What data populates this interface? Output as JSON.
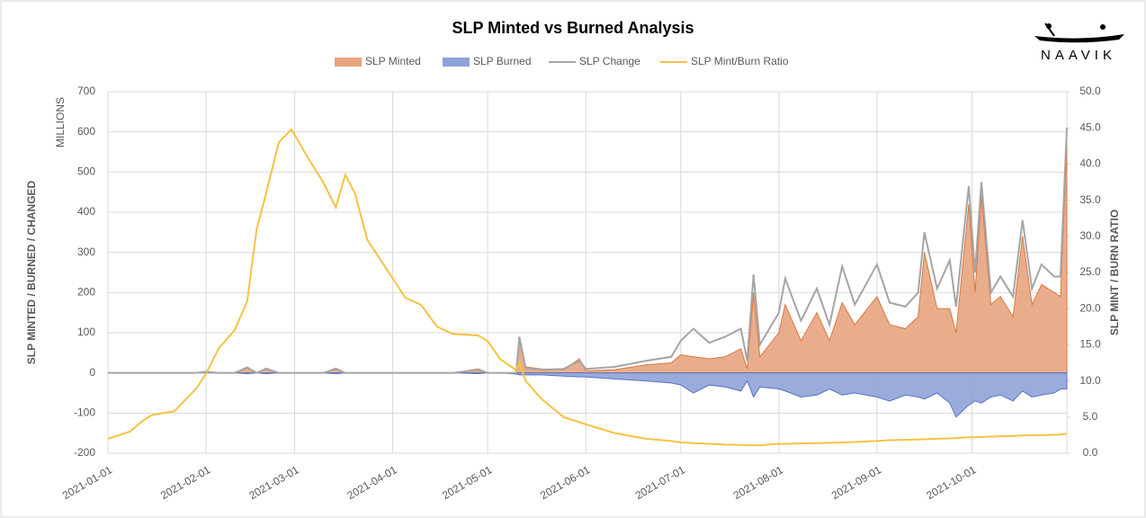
{
  "chart_data": {
    "type": "area-line",
    "title": "SLP Minted vs Burned Analysis",
    "logo": "NAAVIK",
    "y_label": "SLP MINTED / BURNED / CHANGED",
    "y_unit": "MILLIONS",
    "y2_label": "SLP MINT / BURN RATIO",
    "x": [
      "2021-01-01",
      "2021-01-08",
      "2021-01-12",
      "2021-01-15",
      "2021-01-22",
      "2021-01-29",
      "2021-02-01",
      "2021-02-05",
      "2021-02-10",
      "2021-02-14",
      "2021-02-17",
      "2021-02-20",
      "2021-02-24",
      "2021-02-28",
      "2021-03-05",
      "2021-03-10",
      "2021-03-14",
      "2021-03-17",
      "2021-03-20",
      "2021-03-24",
      "2021-03-30",
      "2021-04-05",
      "2021-04-10",
      "2021-04-15",
      "2021-04-20",
      "2021-04-28",
      "2021-05-01",
      "2021-05-05",
      "2021-05-10",
      "2021-05-11",
      "2021-05-13",
      "2021-05-18",
      "2021-05-25",
      "2021-05-30",
      "2021-06-01",
      "2021-06-10",
      "2021-06-20",
      "2021-06-28",
      "2021-07-01",
      "2021-07-05",
      "2021-07-10",
      "2021-07-15",
      "2021-07-20",
      "2021-07-22",
      "2021-07-24",
      "2021-07-26",
      "2021-08-01",
      "2021-08-03",
      "2021-08-08",
      "2021-08-13",
      "2021-08-17",
      "2021-08-21",
      "2021-08-25",
      "2021-09-01",
      "2021-09-05",
      "2021-09-10",
      "2021-09-14",
      "2021-09-16",
      "2021-09-20",
      "2021-09-24",
      "2021-09-26",
      "2021-09-30",
      "2021-10-02",
      "2021-10-04",
      "2021-10-07",
      "2021-10-10",
      "2021-10-14",
      "2021-10-17",
      "2021-10-20",
      "2021-10-23",
      "2021-10-27",
      "2021-10-29",
      "2021-10-31"
    ],
    "series": [
      {
        "name": "SLP Minted",
        "kind": "area",
        "color": "#e8a47f",
        "values": [
          0,
          0,
          0,
          0,
          0,
          0,
          3,
          0,
          0,
          15,
          0,
          12,
          0,
          0,
          0,
          0,
          12,
          0,
          0,
          0,
          0,
          0,
          0,
          0,
          0,
          10,
          0,
          0,
          0,
          80,
          15,
          10,
          8,
          35,
          5,
          8,
          20,
          25,
          45,
          40,
          35,
          40,
          60,
          10,
          200,
          40,
          100,
          170,
          80,
          150,
          80,
          175,
          120,
          190,
          120,
          110,
          140,
          300,
          160,
          160,
          100,
          420,
          200,
          440,
          170,
          190,
          140,
          340,
          170,
          220,
          200,
          190,
          570
        ]
      },
      {
        "name": "SLP Burned",
        "kind": "area",
        "color": "#8fa3d8",
        "values": [
          0,
          0,
          0,
          0,
          0,
          0,
          0,
          0,
          0,
          -2,
          0,
          -2,
          0,
          0,
          0,
          0,
          -2,
          0,
          0,
          0,
          0,
          0,
          0,
          0,
          0,
          -2,
          0,
          0,
          -3,
          -5,
          -5,
          -5,
          -8,
          -10,
          -10,
          -15,
          -20,
          -25,
          -30,
          -50,
          -30,
          -35,
          -45,
          -20,
          -60,
          -35,
          -40,
          -45,
          -60,
          -55,
          -40,
          -55,
          -50,
          -60,
          -70,
          -55,
          -60,
          -65,
          -50,
          -75,
          -110,
          -80,
          -70,
          -75,
          -60,
          -55,
          -70,
          -45,
          -60,
          -55,
          -50,
          -40,
          -40
        ]
      },
      {
        "name": "SLP Change",
        "kind": "line",
        "color": "#a5a5a5",
        "values": [
          0,
          0,
          0,
          0,
          0,
          0,
          3,
          0,
          0,
          13,
          0,
          10,
          0,
          0,
          0,
          0,
          10,
          0,
          0,
          0,
          0,
          0,
          0,
          0,
          0,
          8,
          0,
          0,
          0,
          90,
          12,
          8,
          10,
          30,
          10,
          15,
          30,
          40,
          80,
          110,
          75,
          90,
          110,
          30,
          245,
          70,
          150,
          235,
          130,
          210,
          120,
          265,
          170,
          270,
          175,
          165,
          200,
          350,
          210,
          280,
          165,
          465,
          250,
          475,
          200,
          240,
          190,
          380,
          210,
          270,
          240,
          240,
          610
        ]
      },
      {
        "name": "SLP Mint/Burn Ratio",
        "kind": "line",
        "axis": "y2",
        "color": "#f5c242",
        "values": [
          2.0,
          3.0,
          4.5,
          5.3,
          5.8,
          9,
          11,
          14.5,
          17,
          21,
          31,
          36,
          43,
          44.8,
          41,
          37.5,
          34,
          38.5,
          36,
          29.5,
          25.5,
          21.5,
          20.5,
          17.5,
          16.5,
          16.3,
          15.5,
          13,
          11.5,
          12.5,
          10,
          7.5,
          5,
          4.3,
          4,
          2.8,
          2,
          1.7,
          1.5,
          1.4,
          1.3,
          1.2,
          1.15,
          1.1,
          1.1,
          1.1,
          1.3,
          1.3,
          1.35,
          1.4,
          1.45,
          1.5,
          1.55,
          1.7,
          1.8,
          1.85,
          1.9,
          1.95,
          2.0,
          2.05,
          2.1,
          2.2,
          2.2,
          2.25,
          2.3,
          2.35,
          2.4,
          2.45,
          2.5,
          2.5,
          2.55,
          2.6,
          2.7
        ]
      }
    ],
    "xlim": [
      "2021-01-01",
      "2021-10-31"
    ],
    "xticks": [
      "2021-01-01",
      "2021-02-01",
      "2021-03-01",
      "2021-04-01",
      "2021-05-01",
      "2021-06-01",
      "2021-07-01",
      "2021-08-01",
      "2021-09-01",
      "2021-10-01"
    ],
    "ylim": [
      -200,
      700
    ],
    "yticks": [
      -200,
      -100,
      0,
      100,
      200,
      300,
      400,
      500,
      600,
      700
    ],
    "y2lim": [
      0,
      50
    ],
    "y2ticks": [
      {
        "value": 0,
        "label": "0.0"
      },
      {
        "value": 5,
        "label": "5.0"
      },
      {
        "value": 10,
        "label": "10.0"
      },
      {
        "value": 15,
        "label": "15.0"
      },
      {
        "value": 20,
        "label": "20.0"
      },
      {
        "value": 25,
        "label": "25.0"
      },
      {
        "value": 30,
        "label": "30.0"
      },
      {
        "value": 35,
        "label": "35.0"
      },
      {
        "value": 40,
        "label": "40.0"
      },
      {
        "value": 45,
        "label": "45.0"
      },
      {
        "value": 50,
        "label": "50.0"
      }
    ],
    "grid": true
  }
}
